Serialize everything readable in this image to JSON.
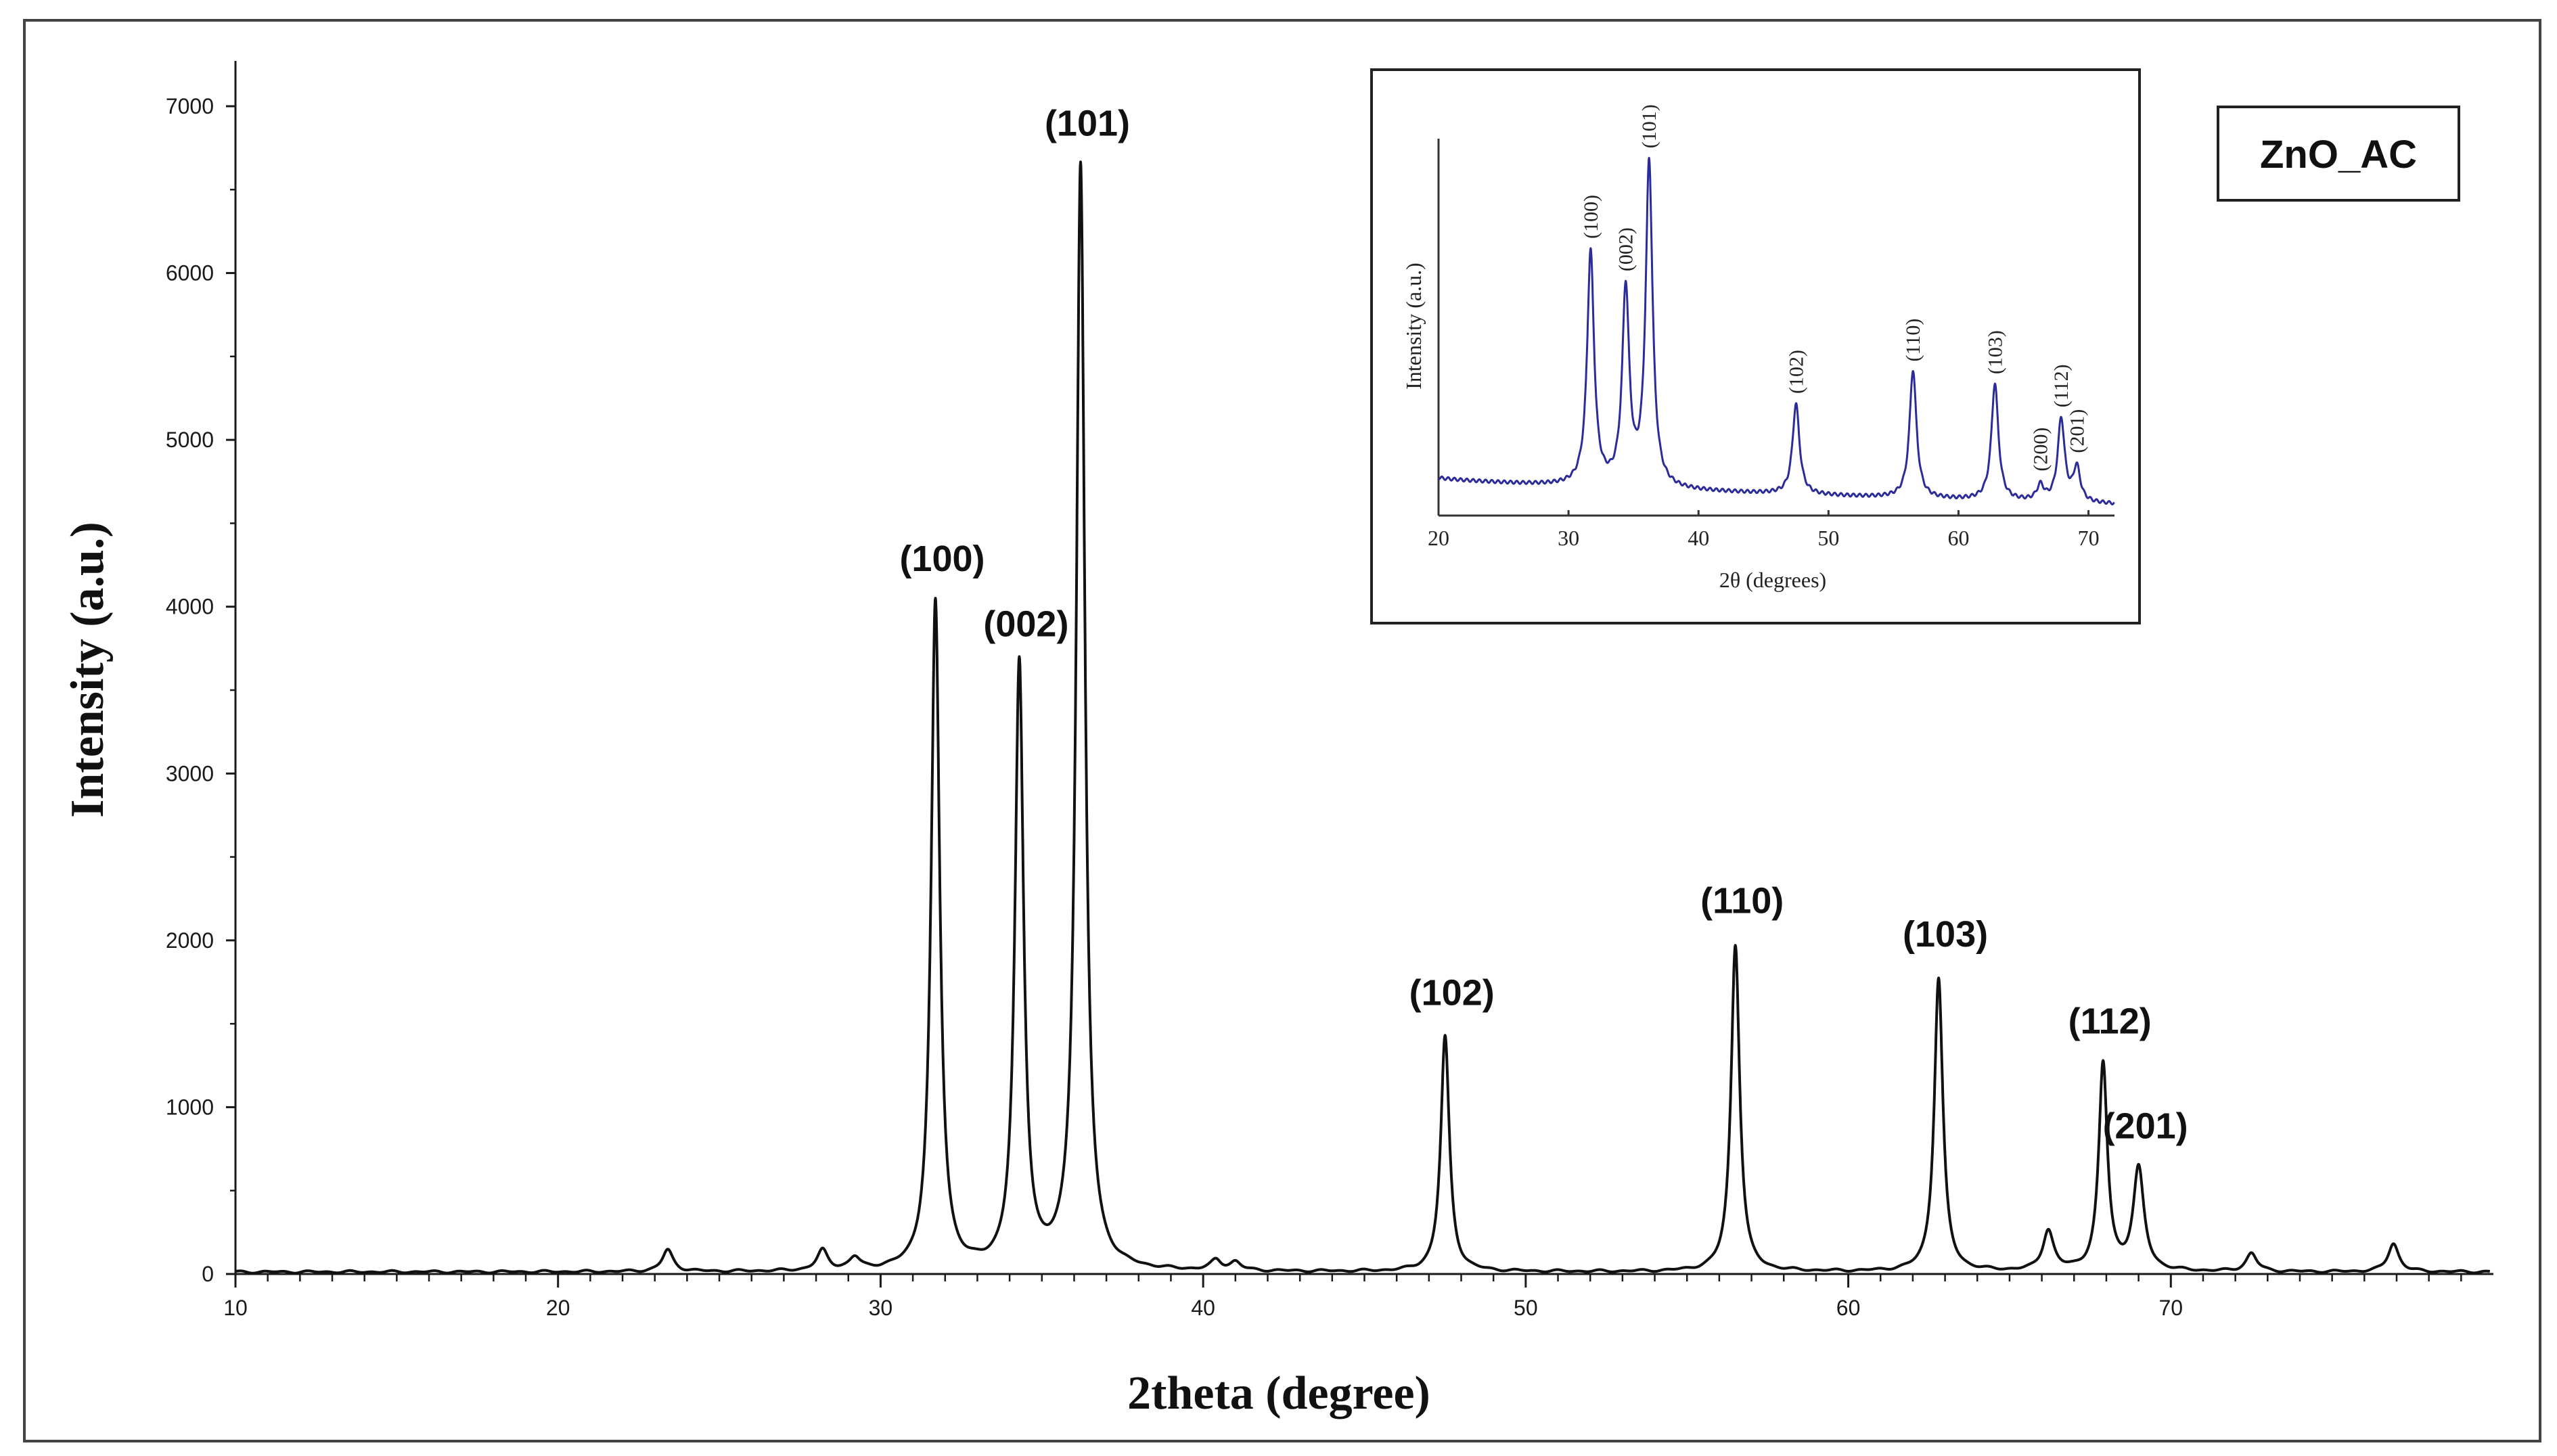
{
  "chart_data": [
    {
      "type": "line",
      "xlabel": "2theta (degree)",
      "ylabel": "Intensity (a.u.)",
      "xlim": [
        10,
        80
      ],
      "ylim": [
        0,
        7000
      ],
      "x_ticks": [
        10,
        20,
        30,
        40,
        50,
        60,
        70
      ],
      "x_tick_labels": [
        "10",
        "20",
        "30",
        "40",
        "50",
        "60",
        "70"
      ],
      "y_ticks": [
        0,
        1000,
        2000,
        3000,
        4000,
        5000,
        6000,
        7000
      ],
      "y_tick_labels": [
        "0",
        "1000",
        "2000",
        "3000",
        "4000",
        "5000",
        "6000",
        "7000"
      ],
      "sample_label": "ZnO_AC",
      "line_color": "#111111",
      "series": [
        {
          "peaks": [
            {
              "x": 23.4,
              "y": 130
            },
            {
              "x": 28.2,
              "y": 120
            },
            {
              "x": 29.2,
              "y": 70
            },
            {
              "x": 31.7,
              "y": 4010,
              "label": "(100)"
            },
            {
              "x": 34.3,
              "y": 3620,
              "label": "(002)"
            },
            {
              "x": 36.2,
              "y": 6620,
              "label": "(101)"
            },
            {
              "x": 40.4,
              "y": 60
            },
            {
              "x": 41.0,
              "y": 50
            },
            {
              "x": 47.5,
              "y": 1410,
              "label": "(102)"
            },
            {
              "x": 56.5,
              "y": 1960,
              "label": "(110)"
            },
            {
              "x": 62.8,
              "y": 1760,
              "label": "(103)"
            },
            {
              "x": 66.2,
              "y": 240
            },
            {
              "x": 67.9,
              "y": 1240,
              "label": "(112)"
            },
            {
              "x": 69.0,
              "y": 610,
              "label": "(201)"
            },
            {
              "x": 72.5,
              "y": 110
            },
            {
              "x": 76.9,
              "y": 170
            }
          ]
        }
      ]
    },
    {
      "type": "line",
      "xlabel": "2θ (degrees)",
      "ylabel": "Intensity (a.u.)",
      "xlim": [
        20,
        72
      ],
      "x_ticks": [
        20,
        30,
        40,
        50,
        60,
        70
      ],
      "x_tick_labels": [
        "20",
        "30",
        "40",
        "50",
        "60",
        "70"
      ],
      "line_color": "#2b2b9a",
      "series": [
        {
          "baseline_start": 0.1,
          "baseline_end": 0.03,
          "peaks": [
            {
              "x": 31.7,
              "y": 0.62,
              "label": "(100)"
            },
            {
              "x": 34.4,
              "y": 0.52,
              "label": "(002)"
            },
            {
              "x": 36.2,
              "y": 0.86,
              "label": "(101)"
            },
            {
              "x": 47.5,
              "y": 0.24,
              "label": "(102)"
            },
            {
              "x": 56.5,
              "y": 0.34,
              "label": "(110)"
            },
            {
              "x": 62.8,
              "y": 0.31,
              "label": "(103)"
            },
            {
              "x": 66.3,
              "y": 0.04,
              "label": "(200)"
            },
            {
              "x": 67.9,
              "y": 0.22,
              "label": "(112)"
            },
            {
              "x": 69.1,
              "y": 0.09,
              "label": "(201)"
            }
          ]
        }
      ]
    }
  ]
}
